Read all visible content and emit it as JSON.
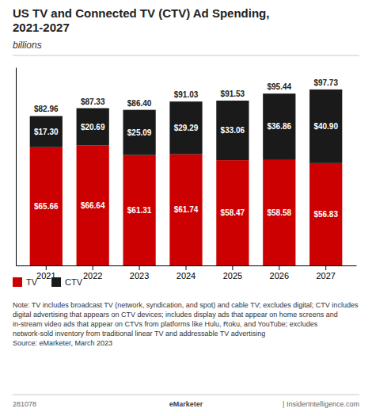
{
  "chart_data": {
    "type": "bar",
    "title": "US TV and Connected TV (CTV) Ad Spending,\n2021-2027",
    "subtitle": "billions",
    "categories": [
      "2021",
      "2022",
      "2023",
      "2024",
      "2025",
      "2026",
      "2027"
    ],
    "series": [
      {
        "name": "TV",
        "color": "#cc0000",
        "values": [
          65.66,
          66.64,
          61.31,
          61.74,
          58.47,
          58.58,
          56.83
        ],
        "value_labels": [
          "$65.66",
          "$66.64",
          "$61.31",
          "$61.74",
          "$58.47",
          "$58.58",
          "$56.83"
        ]
      },
      {
        "name": "CTV",
        "color": "#1a1a1a",
        "values": [
          17.3,
          20.69,
          25.09,
          29.29,
          33.06,
          36.86,
          40.9
        ],
        "value_labels": [
          "$17.30",
          "$20.69",
          "$25.09",
          "$29.29",
          "$33.06",
          "$36.86",
          "$40.90"
        ]
      }
    ],
    "totals": [
      82.96,
      87.33,
      86.4,
      91.03,
      91.53,
      95.44,
      97.73
    ],
    "total_labels": [
      "$82.96",
      "$87.33",
      "$86.40",
      "$91.03",
      "$91.53",
      "$95.44",
      "$97.73"
    ],
    "stacked": true,
    "data_labels": true,
    "ylim": [
      0,
      110
    ],
    "tick_labels": "x",
    "grid": false,
    "legend": "bottom",
    "note": "Note: TV includes broadcast TV (network, syndication, and spot) and cable TV; excludes digital; CTV includes digital advertising that appears on CTV devices; includes display ads that appear on home screens and in-stream video ads that appear on CTVs from platforms like Hulu, Roku, and YouTube; excludes network-sold inventory from traditional linear TV and addressable TV advertising\nSource: eMarketer, March 2023",
    "footer_left": "281078",
    "footer_center": "eMarketer",
    "footer_right": "| InsiderIntelligence.com"
  }
}
